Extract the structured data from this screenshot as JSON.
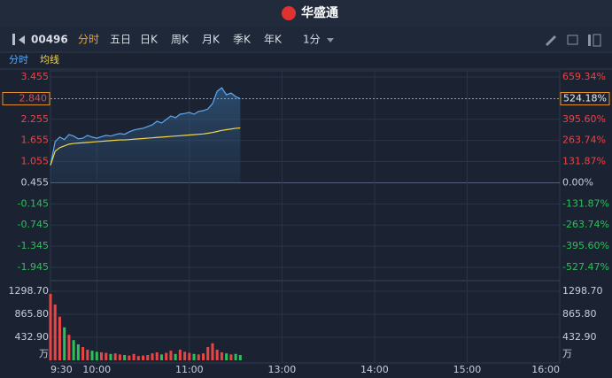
{
  "header": {
    "logo": "华盛通"
  },
  "toolbar": {
    "stock_code": "00496",
    "tabs": [
      "分时",
      "五日",
      "日K",
      "周K",
      "月K",
      "季K",
      "年K"
    ],
    "active_tab": 0,
    "interval": "1分"
  },
  "chart_data": {
    "type": "line",
    "x": [
      "9:30",
      "9:33",
      "9:36",
      "9:39",
      "9:42",
      "9:45",
      "9:48",
      "9:51",
      "9:54",
      "9:57",
      "10:00",
      "10:03",
      "10:06",
      "10:09",
      "10:12",
      "10:15",
      "10:18",
      "10:21",
      "10:24",
      "10:27",
      "10:30",
      "10:33",
      "10:36",
      "10:39",
      "10:42",
      "10:45",
      "10:48",
      "10:51",
      "10:54",
      "10:57",
      "11:00",
      "11:03",
      "11:06",
      "11:09",
      "11:12",
      "11:15",
      "11:18",
      "11:21",
      "11:24",
      "11:27",
      "11:30",
      "11:33"
    ],
    "series": [
      {
        "name": "分时",
        "color": "#5ea8f2",
        "values": [
          0.95,
          1.62,
          1.75,
          1.68,
          1.82,
          1.78,
          1.7,
          1.72,
          1.8,
          1.75,
          1.72,
          1.76,
          1.8,
          1.78,
          1.82,
          1.85,
          1.83,
          1.9,
          1.95,
          1.98,
          2.0,
          2.05,
          2.1,
          2.2,
          2.15,
          2.25,
          2.35,
          2.3,
          2.4,
          2.42,
          2.45,
          2.4,
          2.48,
          2.5,
          2.55,
          2.7,
          3.05,
          3.15,
          2.95,
          3.0,
          2.9,
          2.84
        ]
      },
      {
        "name": "均线",
        "color": "#f2d64b",
        "values": [
          0.95,
          1.35,
          1.45,
          1.5,
          1.55,
          1.57,
          1.58,
          1.59,
          1.6,
          1.61,
          1.62,
          1.63,
          1.64,
          1.65,
          1.66,
          1.67,
          1.67,
          1.68,
          1.69,
          1.7,
          1.71,
          1.72,
          1.73,
          1.74,
          1.75,
          1.76,
          1.77,
          1.78,
          1.79,
          1.8,
          1.81,
          1.82,
          1.83,
          1.84,
          1.86,
          1.88,
          1.91,
          1.94,
          1.96,
          1.98,
          2.0,
          2.01
        ]
      }
    ],
    "ylim": [
      -1.945,
      3.455
    ],
    "yticks": [
      3.455,
      2.255,
      1.655,
      1.055,
      0.455,
      -0.145,
      -0.745,
      -1.345,
      -1.945
    ],
    "y2lim": [
      -527.47,
      659.34
    ],
    "y2ticks": [
      {
        "value": 659.34,
        "label": "659.34%"
      },
      {
        "value": 395.6,
        "label": "395.60%"
      },
      {
        "value": 263.74,
        "label": "263.74%"
      },
      {
        "value": 131.87,
        "label": "131.87%"
      },
      {
        "value": 0,
        "label": "0.00%"
      },
      {
        "value": -131.87,
        "label": "-131.87%"
      },
      {
        "value": -263.74,
        "label": "-263.74%"
      },
      {
        "value": -395.6,
        "label": "-395.60%"
      },
      {
        "value": -527.47,
        "label": "-527.47%"
      }
    ],
    "last_price": {
      "value": 2.84,
      "label": "2.840"
    },
    "last_change": {
      "value": 524.18,
      "label": "524.18%"
    },
    "xticks": [
      "9:30",
      "10:00",
      "11:00",
      "13:00",
      "14:00",
      "15:00",
      "16:00"
    ],
    "volume": {
      "unit": "万",
      "up_color": "#e84545",
      "down_color": "#2fbf5a",
      "values": [
        1250,
        1050,
        820,
        620,
        480,
        380,
        300,
        250,
        200,
        180,
        160,
        150,
        140,
        120,
        130,
        110,
        100,
        90,
        120,
        80,
        90,
        100,
        130,
        150,
        110,
        140,
        180,
        120,
        200,
        160,
        140,
        120,
        110,
        130,
        250,
        320,
        200,
        150,
        130,
        110,
        120,
        100
      ],
      "ylim": [
        0,
        1298.7
      ],
      "yticks": [
        {
          "value": 1298.7,
          "label": "1298.70"
        },
        {
          "value": 865.8,
          "label": "865.80"
        },
        {
          "value": 432.9,
          "label": "432.90"
        }
      ]
    }
  }
}
